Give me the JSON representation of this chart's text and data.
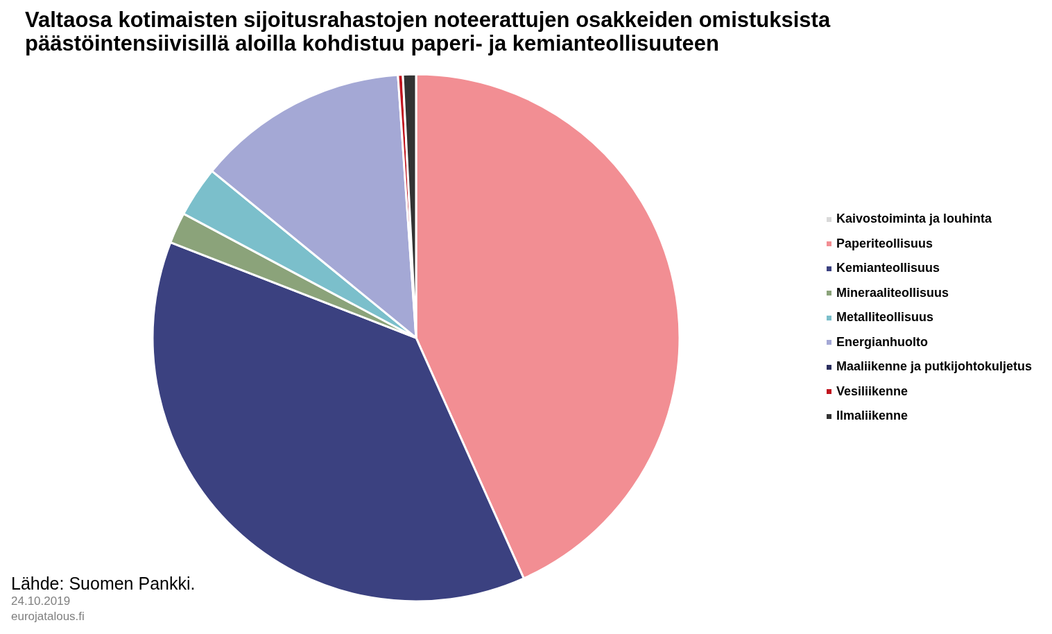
{
  "chart_data": {
    "type": "pie",
    "title": "Valtaosa kotimaisten sijoitusrahastojen noteerattujen osakkeiden omistuksista päästöintensiivisillä aloilla kohdistuu paperi- ja kemianteollisuuteen",
    "categories": [
      "Kaivostoiminta ja louhinta",
      "Paperiteollisuus",
      "Kemianteollisuus",
      "Mineraaliteollisuus",
      "Metalliteollisuus",
      "Energianhuolto",
      "Maaliikenne ja putkijohtokuljetus",
      "Vesiliikenne",
      "Ilmaliikenne"
    ],
    "values": [
      0,
      43.3,
      37.6,
      1.9,
      3.1,
      13.0,
      0,
      0.3,
      0.8
    ],
    "colors": [
      "#d9d9d9",
      "#f28e93",
      "#3b4180",
      "#8ba37a",
      "#7bbfcb",
      "#a4a8d5",
      "#2b2f5e",
      "#c0141e",
      "#333333"
    ],
    "legend": "right",
    "annotations": [
      "Lähde: Suomen Pankki.",
      "24.10.2019",
      "eurojatalous.fi"
    ]
  }
}
